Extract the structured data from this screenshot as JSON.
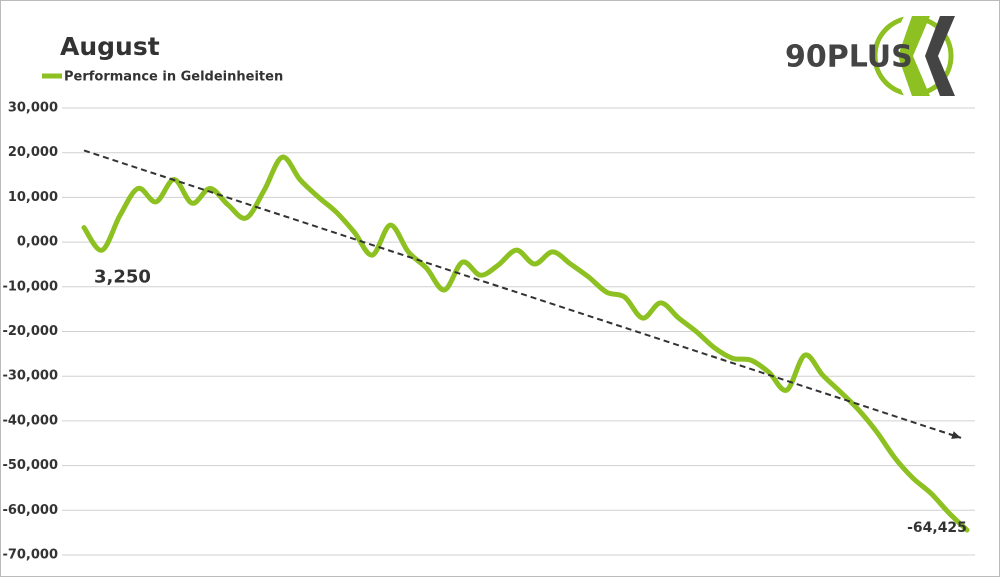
{
  "chart_data": {
    "type": "line",
    "title": "August",
    "logo": "90PLUS",
    "categories": [
      null,
      null,
      null,
      null,
      null,
      null,
      null,
      null,
      null,
      null,
      null,
      null,
      null,
      null,
      null,
      null,
      null,
      null,
      null,
      null,
      null,
      null,
      null,
      null,
      null,
      null,
      null,
      null,
      null,
      null,
      null,
      null,
      null,
      null,
      null,
      null,
      null,
      null,
      null,
      null,
      null,
      null,
      null,
      null,
      null,
      null,
      null,
      null,
      null,
      null
    ],
    "series": [
      {
        "name": "Performance in Geldeinheiten",
        "color": "#8dc021",
        "values": [
          3250,
          -1800,
          6000,
          12000,
          9000,
          14000,
          8700,
          12000,
          8300,
          5400,
          11600,
          19000,
          13900,
          10100,
          6700,
          2200,
          -2900,
          3800,
          -2200,
          -5800,
          -10700,
          -4500,
          -7400,
          -5100,
          -1800,
          -4900,
          -2200,
          -4900,
          -7800,
          -11200,
          -12300,
          -17000,
          -13600,
          -17000,
          -20100,
          -23700,
          -26000,
          -26400,
          -29100,
          -33100,
          -25300,
          -29800,
          -33600,
          -37600,
          -42500,
          -48300,
          -52800,
          -56200,
          -60600,
          -64425
        ],
        "value_labels": [
          "3,250",
          null,
          null,
          null,
          null,
          null,
          null,
          null,
          null,
          null,
          null,
          null,
          null,
          null,
          null,
          null,
          null,
          null,
          null,
          null,
          null,
          null,
          null,
          null,
          null,
          null,
          null,
          null,
          null,
          null,
          null,
          null,
          null,
          null,
          null,
          null,
          null,
          null,
          null,
          null,
          null,
          null,
          null,
          null,
          null,
          null,
          null,
          null,
          null,
          "-64,425"
        ]
      }
    ],
    "trend": {
      "color": "#333333",
      "values": [
        20500,
        -43800
      ]
    },
    "ylim": [
      -70000,
      30000
    ],
    "yticks": [
      {
        "value": -70000,
        "label": "-70,000"
      },
      {
        "value": -60000,
        "label": "-60,000"
      },
      {
        "value": -50000,
        "label": "-50,000"
      },
      {
        "value": -40000,
        "label": "-40,000"
      },
      {
        "value": -30000,
        "label": "-30,000"
      },
      {
        "value": -20000,
        "label": "-20,000"
      },
      {
        "value": -10000,
        "label": "-10,000"
      },
      {
        "value": 0,
        "label": "0,000"
      },
      {
        "value": 10000,
        "label": "10,000"
      },
      {
        "value": 20000,
        "label": "20,000"
      },
      {
        "value": 30000,
        "label": "30,000"
      }
    ],
    "grid": true,
    "legend": "top-left"
  }
}
